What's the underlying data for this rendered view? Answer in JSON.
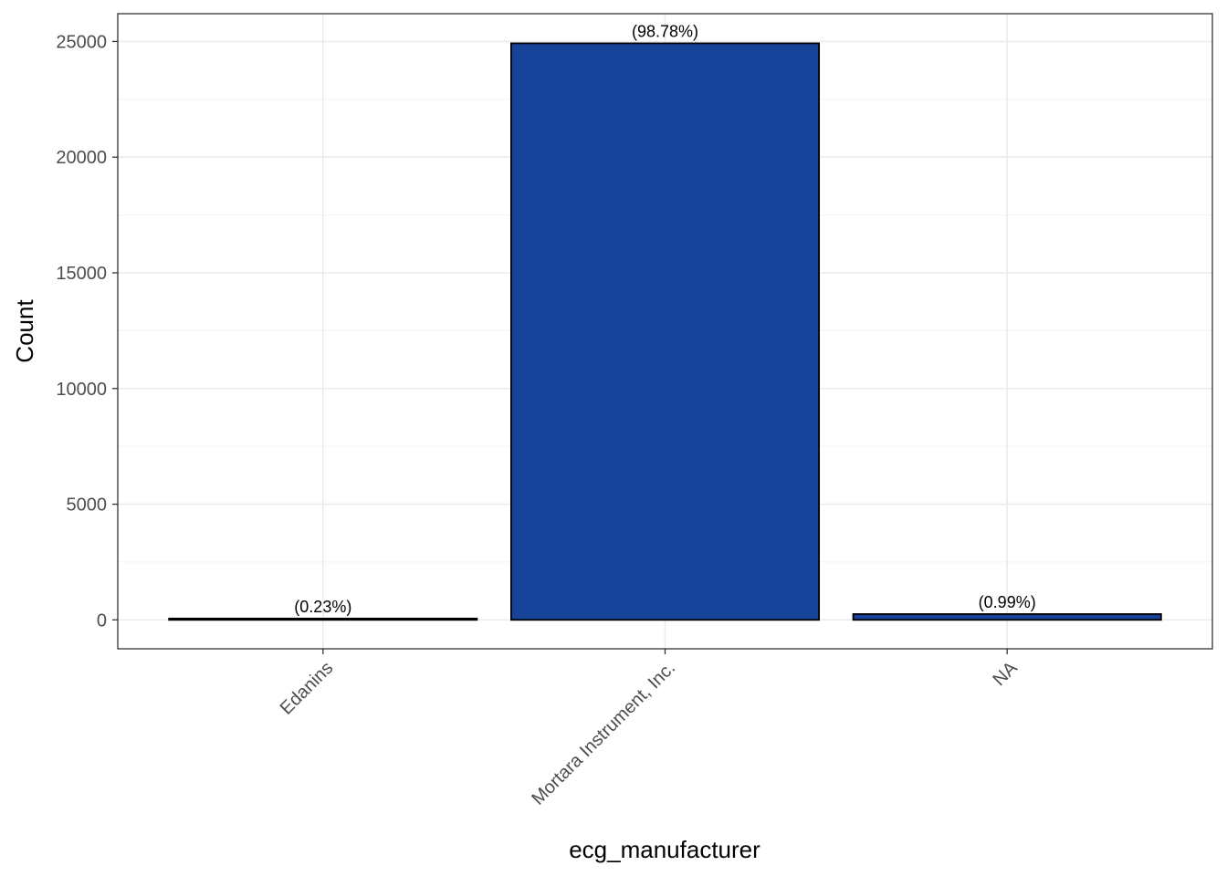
{
  "chart_data": {
    "type": "bar",
    "title": "",
    "xlabel": "ecg_manufacturer",
    "ylabel": "Count",
    "categories": [
      "Edanins",
      "Mortara Instrument, Inc.",
      "NA"
    ],
    "values": [
      58,
      24920,
      250
    ],
    "data_labels": [
      "(0.23%)",
      "(98.78%)",
      "(0.99%)"
    ],
    "yticks": [
      0,
      5000,
      10000,
      15000,
      20000,
      25000
    ],
    "ytick_labels": [
      "0",
      "5000",
      "10000",
      "15000",
      "20000",
      "25000"
    ],
    "ylim": [
      -1250,
      26200
    ],
    "grid": true,
    "legend": "none",
    "bar_color": "#18439a",
    "bar_outline": "#000000",
    "x_tick_rotation": -45
  }
}
